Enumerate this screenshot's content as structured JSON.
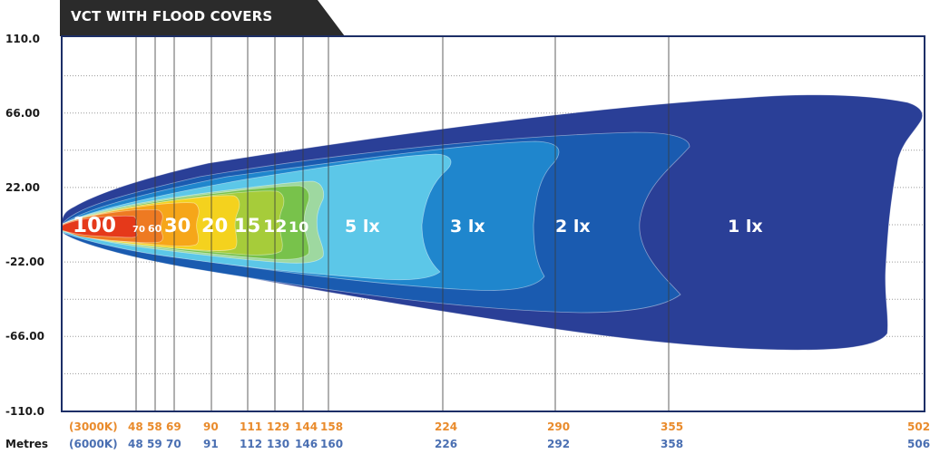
{
  "title": "VCT WITH FLOOD COVERS",
  "units_label": "Metres",
  "colors": {
    "header_bg": "#2b2b2b",
    "frame": "#1c2e66",
    "k3000": "#e98b2c",
    "k6000": "#4a6fb2",
    "zones": [
      "#2a3f97",
      "#1a5bb0",
      "#1f86cd",
      "#5cc7e8",
      "#9ed8a0",
      "#78c24b",
      "#a6cc3a",
      "#f4d21e",
      "#f6a619",
      "#ee7a22",
      "#e5391a"
    ]
  },
  "chart_data": {
    "type": "heatmap",
    "title": "VCT WITH FLOOD COVERS",
    "ylim": [
      -110,
      110
    ],
    "yticks": [
      "110.0",
      "66.00",
      "22.00",
      "-22.00",
      "-66.00",
      "-110.0"
    ],
    "xlabel": "Metres",
    "grid": true,
    "distance_rows": [
      {
        "label": "(3000K)",
        "values": [
          48,
          58,
          69,
          90,
          111,
          129,
          144,
          158,
          224,
          290,
          355,
          502
        ]
      },
      {
        "label": "(6000K)",
        "values": [
          48,
          59,
          70,
          91,
          112,
          130,
          146,
          160,
          226,
          292,
          358,
          506
        ]
      }
    ],
    "zone_labels": [
      "100",
      "70",
      "60",
      "30",
      "20",
      "15",
      "12",
      "10",
      "5 lx",
      "3 lx",
      "2 lx",
      "1 lx"
    ]
  }
}
